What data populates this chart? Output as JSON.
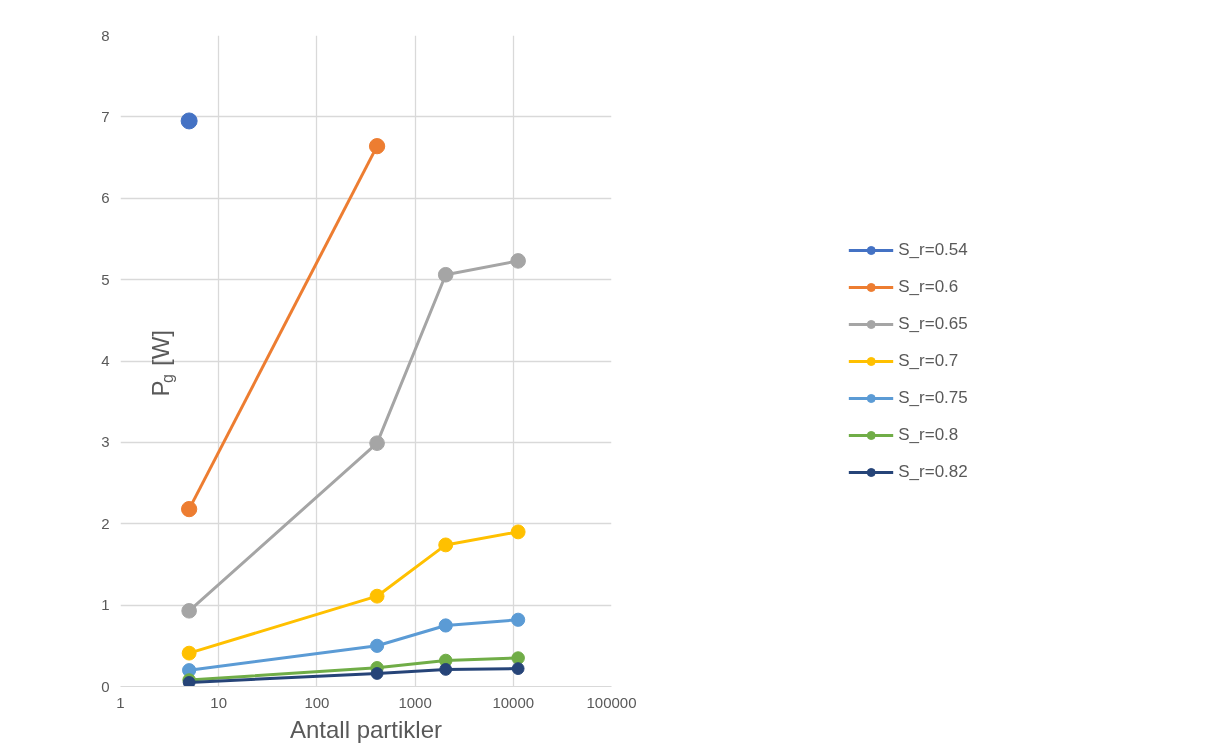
{
  "chart_data": {
    "type": "line",
    "xlabel": "Antall partikler",
    "ylabel": "P$_{g}$ [W]",
    "log": "x",
    "grid": true,
    "legend": "right",
    "marker": "circle",
    "line_style": "solid",
    "xlim": [
      1,
      100000
    ],
    "xticks": [
      1,
      10,
      100,
      1000,
      10000,
      100000
    ],
    "ylim": [
      0,
      8
    ],
    "yticks": [
      0,
      1,
      2,
      3,
      4,
      5,
      6,
      7,
      8
    ],
    "x": [
      5,
      410,
      2050,
      11200
    ],
    "series": [
      {
        "name": "S_r=0.54",
        "color": "#4472c4",
        "values": [
          6.95,
          null,
          null,
          null
        ]
      },
      {
        "name": "S_r=0.6",
        "color": "#ed7d31",
        "values": [
          2.18,
          6.64,
          null,
          null
        ]
      },
      {
        "name": "S_r=0.65",
        "color": "#a5a5a5",
        "values": [
          0.93,
          2.99,
          5.06,
          5.23
        ]
      },
      {
        "name": "S_r=0.7",
        "color": "#ffc000",
        "values": [
          0.41,
          1.11,
          1.74,
          1.9
        ]
      },
      {
        "name": "S_r=0.75",
        "color": "#5b9bd5",
        "values": [
          0.2,
          0.5,
          0.75,
          0.82
        ]
      },
      {
        "name": "S_r=0.8",
        "color": "#70ad47",
        "values": [
          0.08,
          0.23,
          0.32,
          0.35
        ]
      },
      {
        "name": "S_r=0.82",
        "color": "#264478",
        "values": [
          0.05,
          0.16,
          0.21,
          0.22
        ]
      }
    ]
  }
}
